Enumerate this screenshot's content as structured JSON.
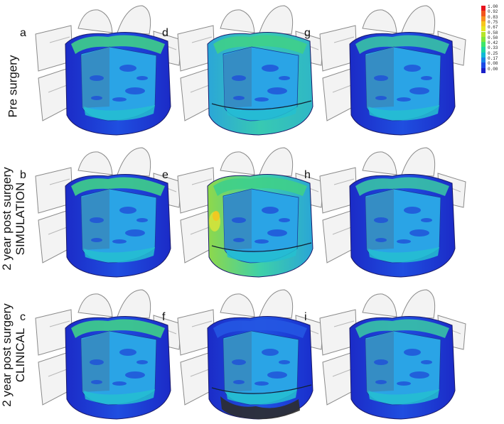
{
  "row_labels": [
    {
      "lines": [
        "Pre surgery"
      ]
    },
    {
      "lines": [
        "2 year post surgery",
        "SIMULATION"
      ]
    },
    {
      "lines": [
        "2 year post surgery",
        "CLINICAL"
      ]
    }
  ],
  "panels": [
    {
      "letter": "a",
      "variant": "pre"
    },
    {
      "letter": "d",
      "variant": "disc-green"
    },
    {
      "letter": "g",
      "variant": "plain"
    },
    {
      "letter": "b",
      "variant": "sim"
    },
    {
      "letter": "e",
      "variant": "disc-hot"
    },
    {
      "letter": "h",
      "variant": "plain"
    },
    {
      "letter": "c",
      "variant": "pre"
    },
    {
      "letter": "f",
      "variant": "disc-dark"
    },
    {
      "letter": "i",
      "variant": "plain"
    }
  ],
  "colorbar": {
    "ticks": [
      "1.00",
      "0.92",
      "0.83",
      "0.75",
      "0.67",
      "0.58",
      "0.50",
      "0.42",
      "0.33",
      "0.25",
      "0.17",
      "0.08",
      "0.00"
    ],
    "colors": [
      "#e8141e",
      "#f2561c",
      "#f7921e",
      "#f6c61d",
      "#e6e621",
      "#b5e52a",
      "#7fe63c",
      "#3fe56a",
      "#1fd6a4",
      "#11b9d6",
      "#1983e8",
      "#1c4ae6",
      "#1a20c9"
    ]
  }
}
